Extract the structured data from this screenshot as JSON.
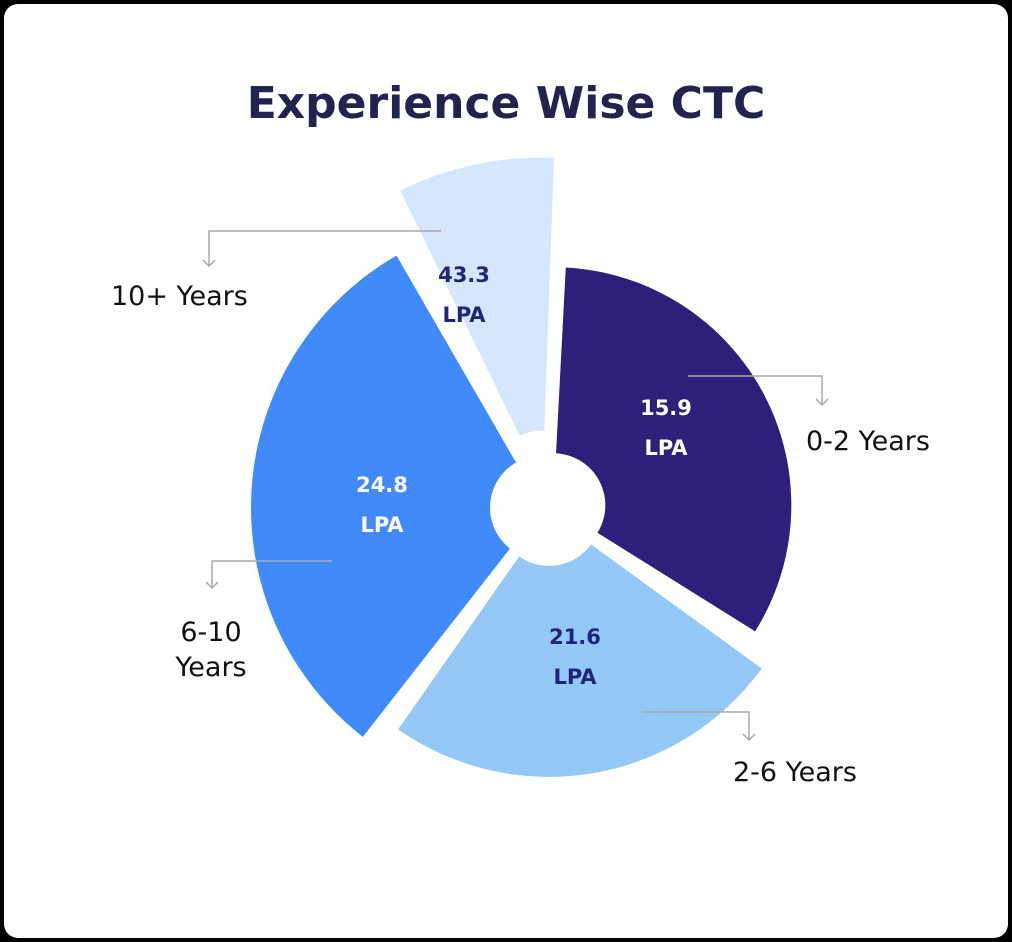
{
  "chart_data": {
    "type": "pie",
    "title": "Experience Wise CTC",
    "unit": "LPA",
    "categories": [
      "0-2 Years",
      "2-6 Years",
      "6-10 Years",
      "10+ Years"
    ],
    "values": [
      15.9,
      21.6,
      24.8,
      43.3
    ],
    "value_labels": [
      "15.9",
      "21.6",
      "24.8",
      "43.3"
    ],
    "colors": [
      "#2e1f7a",
      "#93c8f7",
      "#418af9",
      "#d5e7fc"
    ],
    "value_label_colors": [
      "#ffffff",
      "#23237a",
      "#ffffff",
      "#23237a"
    ],
    "legend": "none",
    "grid": false
  }
}
